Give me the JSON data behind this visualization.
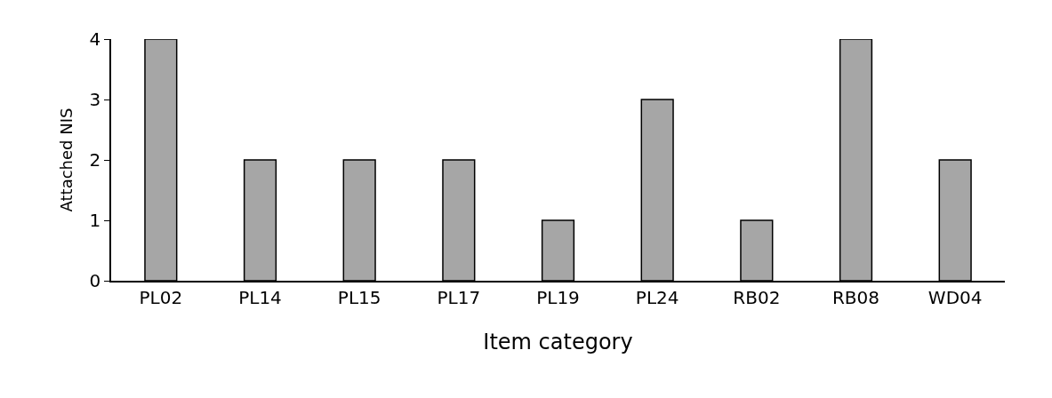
{
  "chart_data": {
    "type": "bar",
    "xlabel": "Item category",
    "ylabel": "Attached NIS",
    "categories": [
      "PL02",
      "PL14",
      "PL15",
      "PL17",
      "PL19",
      "PL24",
      "RB02",
      "RB08",
      "WD04"
    ],
    "values": [
      4,
      2,
      2,
      2,
      1,
      3,
      1,
      4,
      2
    ],
    "color": "#a6a6a6",
    "ylim": [
      0,
      4
    ],
    "yticks": [
      0,
      1,
      2,
      3,
      4
    ]
  }
}
